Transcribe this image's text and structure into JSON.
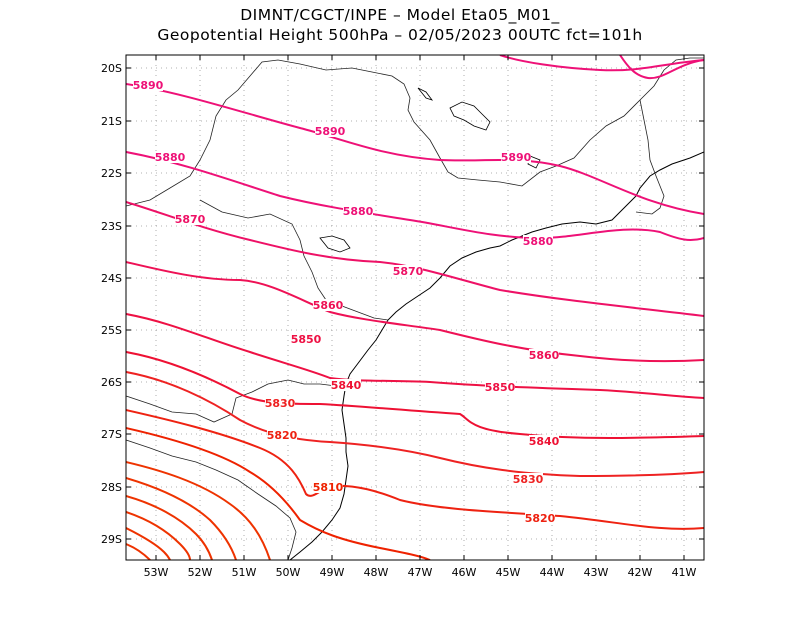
{
  "header": {
    "line1": "DIMNT/CGCT/INPE  –   Model Eta05_M01_",
    "line2": "Geopotential Height 500hPa  –   02/05/2023 00UTC fct=101h"
  },
  "axes": {
    "lat_ticks": [
      "20S",
      "21S",
      "22S",
      "23S",
      "24S",
      "25S",
      "26S",
      "27S",
      "28S",
      "29S"
    ],
    "lon_ticks": [
      "53W",
      "52W",
      "51W",
      "50W",
      "49W",
      "48W",
      "47W",
      "46W",
      "45W",
      "44W",
      "43W",
      "42W",
      "41W"
    ],
    "lat_range": [
      -29.4,
      -19.8
    ],
    "lon_range": [
      -53.6,
      -40.5
    ],
    "grid": "dotted"
  },
  "contours": {
    "units": "gpm",
    "levels": [
      5890,
      5880,
      5870,
      5860,
      5850,
      5840,
      5830,
      5820,
      5810
    ],
    "labels": [
      {
        "text": "5890"
      },
      {
        "text": "5890"
      },
      {
        "text": "5890"
      },
      {
        "text": "5880"
      },
      {
        "text": "5880"
      },
      {
        "text": "5880"
      },
      {
        "text": "5870"
      },
      {
        "text": "5870"
      },
      {
        "text": "5860"
      },
      {
        "text": "5860"
      },
      {
        "text": "5850"
      },
      {
        "text": "5850"
      },
      {
        "text": "5840"
      },
      {
        "text": "5840"
      },
      {
        "text": "5830"
      },
      {
        "text": "5830"
      },
      {
        "text": "5820"
      },
      {
        "text": "5820"
      },
      {
        "text": "5810"
      }
    ],
    "colors": {
      "5890": "#ee1177",
      "5880": "#ee1177",
      "5870": "#ee1166",
      "5860": "#ee1155",
      "5850": "#ee1144",
      "5840": "#ee1133",
      "5830": "#ee2222",
      "5820": "#ee2211",
      "5810": "#ee2200",
      "lower": "#ee3300"
    }
  },
  "map": {
    "coastline_color": "#000000",
    "border_color": "#333333"
  }
}
